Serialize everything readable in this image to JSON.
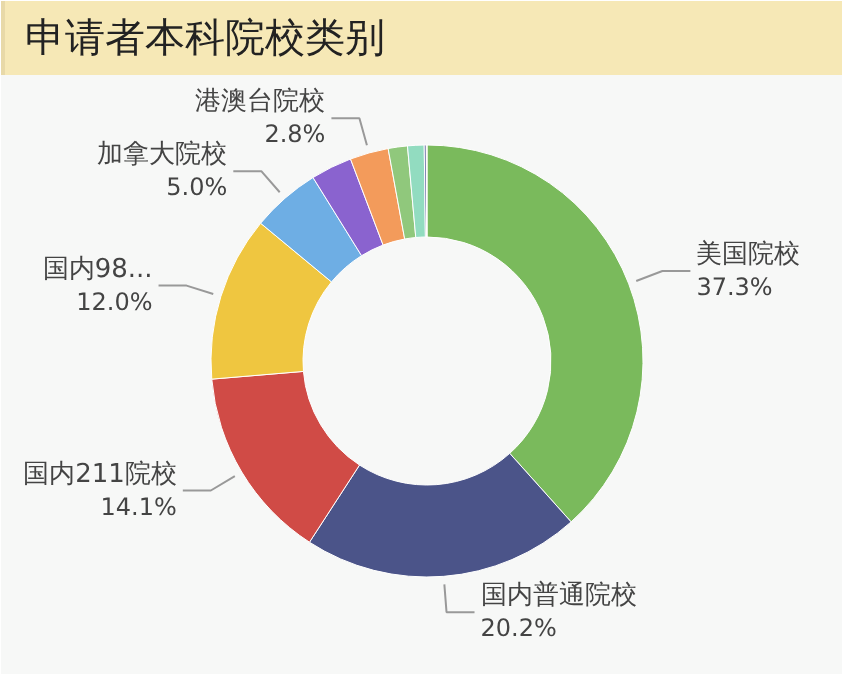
{
  "chart_data": {
    "type": "donut",
    "title": "申请者本科院校类别",
    "categories": [
      "美国院校",
      "国内普通院校",
      "国内211院校",
      "国内98...",
      "加拿大院校",
      null,
      "港澳台院校",
      null,
      null,
      null,
      null
    ],
    "values": [
      37.3,
      20.2,
      14.1,
      12.0,
      5.0,
      3.0,
      2.8,
      1.4,
      1.2,
      0.15,
      0.05
    ],
    "value_labels": [
      "37.3%",
      "20.2%",
      "14.1%",
      "12.0%",
      "5.0%",
      null,
      "2.8%",
      null,
      null,
      null,
      null
    ],
    "colors": [
      "#7aba5c",
      "#4b5489",
      "#d04b46",
      "#efc640",
      "#6eaee4",
      "#8a63cf",
      "#f39b5b",
      "#90c87c",
      "#92dcc0",
      "#5b5f9e",
      "#e8d45a"
    ]
  }
}
